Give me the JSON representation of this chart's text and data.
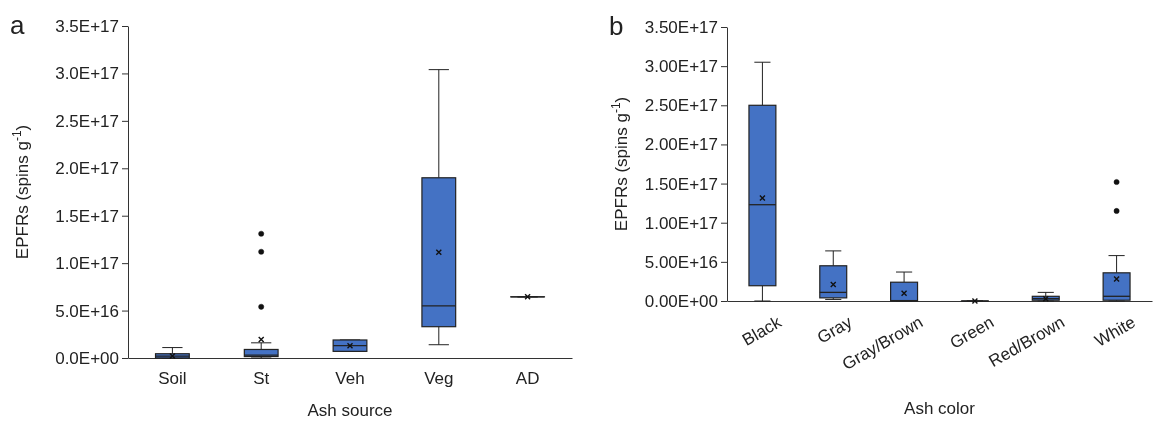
{
  "chart_data": [
    {
      "type": "box",
      "title": "a",
      "xlabel": "Ash source",
      "ylabel": "EPFRs (spins g$^{-1}$)",
      "color": "#4472c4",
      "categories": [
        "Soil",
        "St",
        "Veh",
        "Veg",
        "AD"
      ],
      "ylim": [
        0,
        3.5e+17
      ],
      "yticks": [
        {
          "value": 0,
          "label": "0.0E+00"
        },
        {
          "value": 5e+16,
          "label": "5.0E+16"
        },
        {
          "value": 1e+17,
          "label": "1.0E+17"
        },
        {
          "value": 1.5e+17,
          "label": "1.5E+17"
        },
        {
          "value": 2e+17,
          "label": "2.0E+17"
        },
        {
          "value": 2.5e+17,
          "label": "2.5E+17"
        },
        {
          "value": 3e+17,
          "label": "3.0E+17"
        },
        {
          "value": 3.5e+17,
          "label": "3.5E+17"
        }
      ],
      "boxes": [
        {
          "low": 0,
          "q1": 0,
          "median": 2000000000000000.0,
          "q3": 4500000000000000.0,
          "high": 1.1e+16,
          "mean": 2000000000000000.0
        },
        {
          "low": 0,
          "q1": 1500000000000000.0,
          "median": 3000000000000000.0,
          "q3": 9000000000000000.0,
          "high": 1.6e+16,
          "mean": 1.95e+16,
          "outliers": [
            5.4e+16,
            1.12e+17,
            1.31e+17
          ]
        },
        {
          "low": 7000000000000000.0,
          "q1": 7000000000000000.0,
          "median": 1.3e+16,
          "q3": 1.9e+16,
          "high": 1.9e+16,
          "mean": 1.3e+16
        },
        {
          "low": 1.4e+16,
          "q1": 3.3e+16,
          "median": 5.5e+16,
          "q3": 1.9e+17,
          "high": 3.04e+17,
          "mean": 1.115e+17
        },
        {
          "low": 6.45e+16,
          "q1": 6.45e+16,
          "median": 6.45e+16,
          "q3": 6.45e+16,
          "high": 6.45e+16,
          "mean": 6.45e+16
        }
      ]
    },
    {
      "type": "box",
      "title": "b",
      "xlabel": "Ash color",
      "ylabel": "EPFRs (spins g$^{-1}$)",
      "color": "#4472c4",
      "categories": [
        "Black",
        "Gray",
        "Gray/Brown",
        "Green",
        "Red/Brown",
        "White"
      ],
      "ylim": [
        0,
        3.5e+17
      ],
      "yticks": [
        {
          "value": 0,
          "label": "0.00E+00"
        },
        {
          "value": 5e+16,
          "label": "5.00E+16"
        },
        {
          "value": 1e+17,
          "label": "1.00E+17"
        },
        {
          "value": 1.5e+17,
          "label": "1.50E+17"
        },
        {
          "value": 2e+17,
          "label": "2.00E+17"
        },
        {
          "value": 2.5e+17,
          "label": "2.50E+17"
        },
        {
          "value": 3e+17,
          "label": "3.00E+17"
        },
        {
          "value": 3.5e+17,
          "label": "3.50E+17"
        }
      ],
      "boxes": [
        {
          "low": 0,
          "q1": 1.95e+16,
          "median": 1.23e+17,
          "q3": 2.5e+17,
          "high": 3.05e+17,
          "mean": 1.315e+17
        },
        {
          "low": 2000000000000000.0,
          "q1": 4000000000000000.0,
          "median": 1.1e+16,
          "q3": 4.5e+16,
          "high": 6.4e+16,
          "mean": 2.1e+16
        },
        {
          "low": 0,
          "q1": 0,
          "median": 500000000000000.0,
          "q3": 2.4e+16,
          "high": 3.7e+16,
          "mean": 1e+16
        },
        {
          "low": 0,
          "q1": 0,
          "median": 0,
          "q3": 0,
          "high": 0,
          "mean": 0
        },
        {
          "low": 0,
          "q1": 1000000000000000.0,
          "median": 3000000000000000.0,
          "q3": 6000000000000000.0,
          "high": 1.1e+16,
          "mean": 3000000000000000.0
        },
        {
          "low": 0,
          "q1": 1000000000000000.0,
          "median": 6000000000000000.0,
          "q3": 3.6e+16,
          "high": 5.8e+16,
          "mean": 2.8e+16,
          "outliers": [
            1.15e+17,
            1.52e+17
          ]
        }
      ]
    }
  ]
}
